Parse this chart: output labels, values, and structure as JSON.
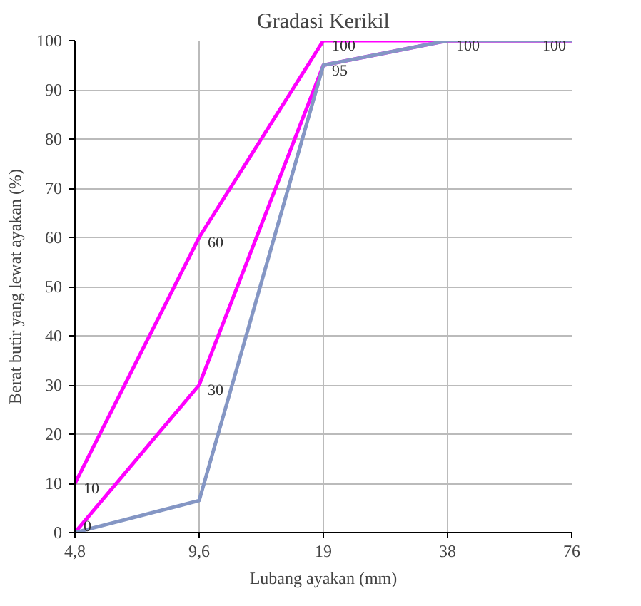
{
  "chart_data": {
    "type": "line",
    "title": "Gradasi Kerikil",
    "xlabel": "Lubang ayakan (mm)",
    "ylabel": "Berat butir yang lewat ayakan (%)",
    "categories": [
      "4,8",
      "9,6",
      "19",
      "38",
      "76"
    ],
    "series": [
      {
        "color": "#ff00ff",
        "values": [
          10,
          60,
          100,
          100,
          100
        ]
      },
      {
        "color": "#ff00ff",
        "values": [
          0,
          30,
          95,
          100,
          100
        ]
      },
      {
        "color": "#8496c4",
        "values": [
          0,
          6.5,
          95,
          100,
          100
        ]
      }
    ],
    "ylim": [
      0,
      100
    ],
    "yticks": [
      0,
      10,
      20,
      30,
      40,
      50,
      60,
      70,
      80,
      90,
      100
    ],
    "grid": true,
    "marker": "none",
    "line_style": "solid",
    "annotations": [
      {
        "text": "10",
        "x": "4,8",
        "y": 10
      },
      {
        "text": "0",
        "x": "4,8",
        "y": 0
      },
      {
        "text": "60",
        "x": "9,6",
        "y": 60
      },
      {
        "text": "30",
        "x": "9,6",
        "y": 30
      },
      {
        "text": "100",
        "x": "19",
        "y": 100
      },
      {
        "text": "95",
        "x": "19",
        "y": 95
      },
      {
        "text": "100",
        "x": "38",
        "y": 100
      },
      {
        "text": "100",
        "x": "76",
        "y": 100
      }
    ]
  }
}
